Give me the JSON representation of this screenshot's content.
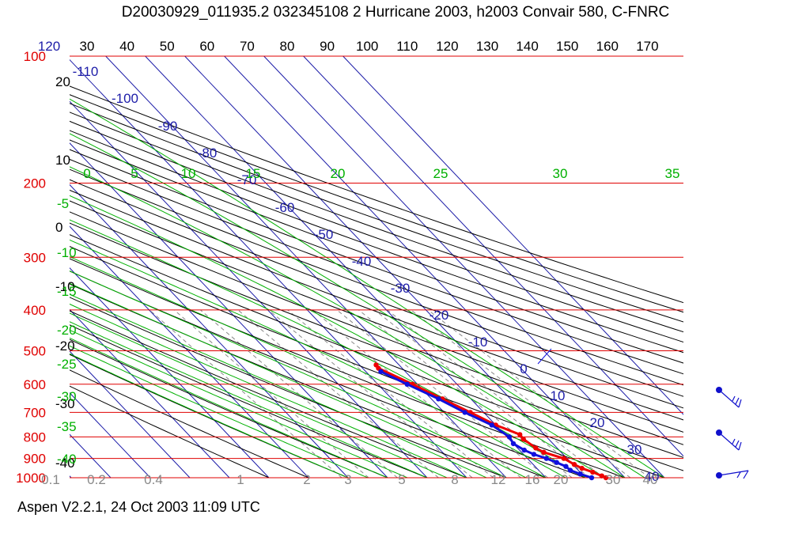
{
  "header": {
    "title": "D20030929_011935.2 032345108 2 Hurricane 2003, h2003 Convair 580, C-FNRC"
  },
  "footer": {
    "text": "Aspen V2.2.1, 24 Oct 2003  11:09 UTC"
  },
  "colors": {
    "isobar": "#e00000",
    "isotherm": "#1c1ca8",
    "dry_adiabat": "#000000",
    "moist_adiabat": "#00b000",
    "mixing_ratio": "#888888",
    "temperature_trace": "#ee0000",
    "dewpoint_trace": "#1010dd",
    "wind_barb": "#1010cc"
  },
  "chart_data": {
    "type": "skew-t",
    "pressure_levels": [
      100,
      200,
      300,
      400,
      500,
      600,
      700,
      800,
      900,
      1000
    ],
    "theta_labels": [
      30,
      40,
      50,
      60,
      70,
      80,
      90,
      100,
      110,
      120,
      130,
      140,
      150,
      160,
      170
    ],
    "theta_extra_label": "120",
    "dry_left_labels": [
      20,
      10,
      0,
      -10,
      -20,
      -30,
      -40
    ],
    "isotherm_labels": [
      -110,
      -100,
      -90,
      -80,
      -70,
      -60,
      -50,
      -40,
      -30,
      -20,
      -10,
      0,
      10,
      20,
      30,
      40
    ],
    "moist_top_labels": [
      0,
      5,
      10,
      15,
      20,
      25,
      30,
      35
    ],
    "moist_left_labels": [
      -5,
      -10,
      -15,
      -20,
      -25,
      -30,
      -35,
      -40
    ],
    "mixing_ratio_labels": [
      "0.1",
      "0.2",
      "0.4",
      "1",
      "2",
      "3",
      "5",
      "8",
      "12",
      "16",
      "20",
      "30",
      "40"
    ],
    "temperature_profile": [
      {
        "p": 540,
        "t": -5.8
      },
      {
        "p": 550,
        "t": -6.0
      },
      {
        "p": 600,
        "t": -1.2
      },
      {
        "p": 650,
        "t": 2.8
      },
      {
        "p": 700,
        "t": 6.6
      },
      {
        "p": 750,
        "t": 10.0
      },
      {
        "p": 790,
        "t": 13.8
      },
      {
        "p": 810,
        "t": 13.6
      },
      {
        "p": 850,
        "t": 14.6
      },
      {
        "p": 870,
        "t": 15.6
      },
      {
        "p": 900,
        "t": 19.2
      },
      {
        "p": 930,
        "t": 20.4
      },
      {
        "p": 950,
        "t": 21.4
      },
      {
        "p": 970,
        "t": 23.2
      },
      {
        "p": 990,
        "t": 24.6
      },
      {
        "p": 1000,
        "t": 25.2
      }
    ],
    "dewpoint_profile": [
      {
        "p": 560,
        "t": -6.2
      },
      {
        "p": 600,
        "t": -2.6
      },
      {
        "p": 650,
        "t": 1.8
      },
      {
        "p": 700,
        "t": 5.2
      },
      {
        "p": 750,
        "t": 9.0
      },
      {
        "p": 800,
        "t": 10.6
      },
      {
        "p": 830,
        "t": 10.0
      },
      {
        "p": 860,
        "t": 11.2
      },
      {
        "p": 880,
        "t": 12.6
      },
      {
        "p": 900,
        "t": 14.8
      },
      {
        "p": 920,
        "t": 16.4
      },
      {
        "p": 940,
        "t": 17.8
      },
      {
        "p": 960,
        "t": 18.0
      },
      {
        "p": 980,
        "t": 19.6
      },
      {
        "p": 1000,
        "t": 21.6
      }
    ],
    "wind_barbs": [
      {
        "p": 700,
        "label": "barb-700"
      },
      {
        "p": 850,
        "label": "barb-850"
      },
      {
        "p": 1000,
        "label": "barb-1000"
      }
    ]
  }
}
